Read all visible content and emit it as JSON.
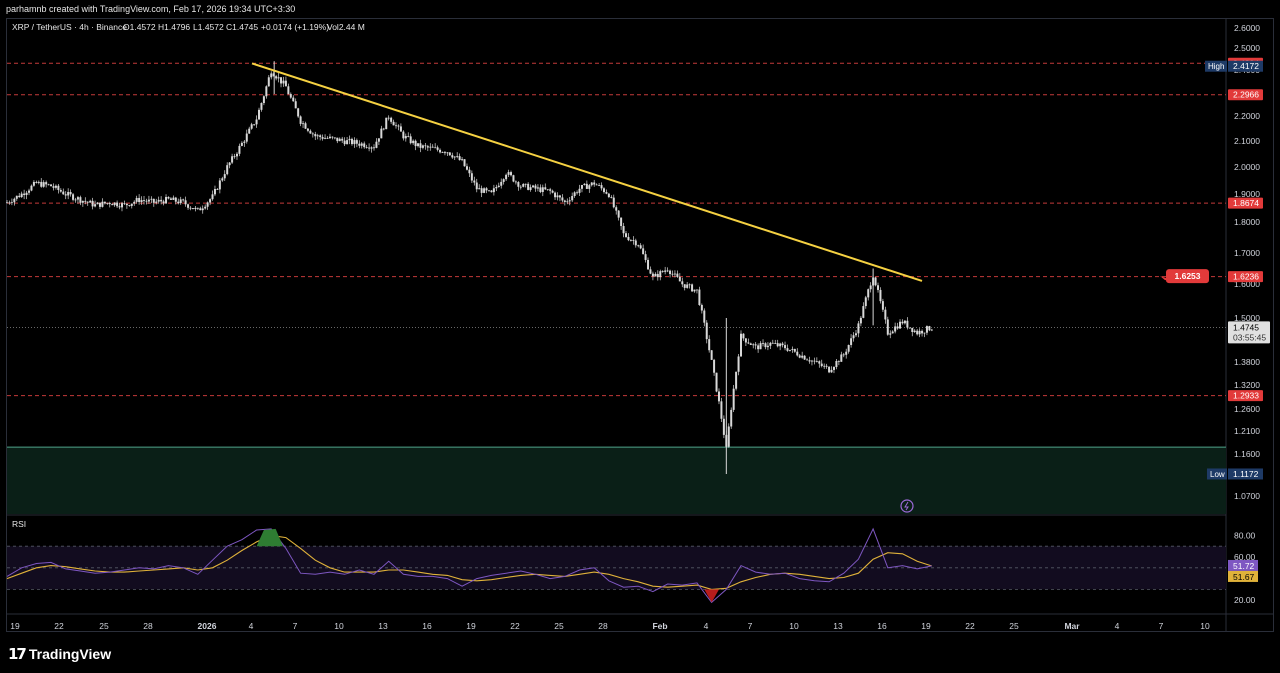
{
  "topbar": {
    "credit": "parhamnb created with TradingView.com, Feb 17, 2026 19:34 UTC+3:30"
  },
  "legend": {
    "symbol": "XRP / TetherUS · 4h · Binance",
    "open": "O1.4572",
    "high": "H1.4796",
    "low": "L1.4572",
    "close": "C1.4745",
    "change": "+0.0174 (+1.19%)",
    "volume": "Vol2.44 M"
  },
  "rsi_label": "RSI",
  "brand": {
    "logo": "17",
    "name": "TradingView"
  },
  "colors": {
    "bg": "#000000",
    "candle": "#d9d9d9",
    "trendline": "#f5d142",
    "level_line": "#c43a3a",
    "zone": "#0a1f17",
    "zone_border": "#4fa38a",
    "rsi_line": "#7e57c2",
    "rsi_ma": "#e0b23a",
    "tag_red": "#e23a3a",
    "tag_blue": "#1e3a66"
  },
  "chart_data": [
    {
      "type": "candlestick",
      "symbol": "XRP / TetherUS",
      "timeframe": "4h",
      "price_ticks": [
        "2.6000",
        "2.5000",
        "2.4000",
        "2.3000",
        "2.2000",
        "2.1000",
        "2.0000",
        "1.9000",
        "1.8000",
        "1.7000",
        "1.6000",
        "1.5000",
        "1.3800",
        "1.3200",
        "1.2600",
        "1.2100",
        "1.1600",
        "1.0700"
      ],
      "date_ticks": [
        "19",
        "22",
        "25",
        "28",
        "2026",
        "4",
        "7",
        "10",
        "13",
        "16",
        "19",
        "22",
        "25",
        "28",
        "Feb",
        "4",
        "7",
        "10",
        "13",
        "16",
        "19",
        "22",
        "25",
        "Mar",
        "4",
        "7",
        "10"
      ],
      "levels": [
        {
          "label": "2.4304",
          "price": 2.4304
        },
        {
          "label": "2.2966",
          "price": 2.2966
        },
        {
          "label": "1.8674",
          "price": 1.8674
        },
        {
          "label": "1.6236",
          "price": 1.6236
        },
        {
          "label": "1.2933",
          "price": 1.2933
        }
      ],
      "high_marker": {
        "label": "High",
        "value": "2.4172",
        "price": 2.4172
      },
      "low_marker": {
        "label": "Low",
        "value": "1.1172",
        "price": 1.1172
      },
      "last_price": {
        "value": "1.4745",
        "countdown": "03:55:45",
        "price": 1.4745
      },
      "callout": {
        "label": "1.6253",
        "price": 1.6253
      },
      "trendline": [
        {
          "date": "Jan 5",
          "price": 2.43
        },
        {
          "date": "Feb 18",
          "price": 1.62
        }
      ],
      "support_zone": {
        "top": 1.175,
        "bottom": 1.02
      },
      "close_path": [
        {
          "d": 0,
          "p": 1.87
        },
        {
          "d": 1,
          "p": 1.9
        },
        {
          "d": 2,
          "p": 1.94
        },
        {
          "d": 3,
          "p": 1.93
        },
        {
          "d": 4,
          "p": 1.9
        },
        {
          "d": 5,
          "p": 1.88
        },
        {
          "d": 6,
          "p": 1.86
        },
        {
          "d": 7,
          "p": 1.87
        },
        {
          "d": 8,
          "p": 1.86
        },
        {
          "d": 9,
          "p": 1.88
        },
        {
          "d": 10,
          "p": 1.87
        },
        {
          "d": 11,
          "p": 1.88
        },
        {
          "d": 12,
          "p": 1.87
        },
        {
          "d": 13,
          "p": 1.84
        },
        {
          "d": 14,
          "p": 1.89
        },
        {
          "d": 15,
          "p": 2.0
        },
        {
          "d": 16,
          "p": 2.09
        },
        {
          "d": 17,
          "p": 2.19
        },
        {
          "d": 18,
          "p": 2.4
        },
        {
          "d": 19,
          "p": 2.33
        },
        {
          "d": 20,
          "p": 2.18
        },
        {
          "d": 21,
          "p": 2.12
        },
        {
          "d": 22,
          "p": 2.11
        },
        {
          "d": 23,
          "p": 2.1
        },
        {
          "d": 24,
          "p": 2.09
        },
        {
          "d": 25,
          "p": 2.08
        },
        {
          "d": 26,
          "p": 2.2
        },
        {
          "d": 27,
          "p": 2.12
        },
        {
          "d": 28,
          "p": 2.08
        },
        {
          "d": 29,
          "p": 2.07
        },
        {
          "d": 30,
          "p": 2.06
        },
        {
          "d": 31,
          "p": 2.02
        },
        {
          "d": 32,
          "p": 1.92
        },
        {
          "d": 33,
          "p": 1.9
        },
        {
          "d": 34,
          "p": 1.98
        },
        {
          "d": 35,
          "p": 1.93
        },
        {
          "d": 36,
          "p": 1.92
        },
        {
          "d": 37,
          "p": 1.91
        },
        {
          "d": 38,
          "p": 1.87
        },
        {
          "d": 39,
          "p": 1.92
        },
        {
          "d": 40,
          "p": 1.94
        },
        {
          "d": 41,
          "p": 1.9
        },
        {
          "d": 42,
          "p": 1.76
        },
        {
          "d": 43,
          "p": 1.73
        },
        {
          "d": 44,
          "p": 1.62
        },
        {
          "d": 45,
          "p": 1.65
        },
        {
          "d": 46,
          "p": 1.6
        },
        {
          "d": 47,
          "p": 1.58
        },
        {
          "d": 48,
          "p": 1.38
        },
        {
          "d": 49,
          "p": 1.17
        },
        {
          "d": 50,
          "p": 1.45
        },
        {
          "d": 51,
          "p": 1.42
        },
        {
          "d": 52,
          "p": 1.43
        },
        {
          "d": 53,
          "p": 1.42
        },
        {
          "d": 54,
          "p": 1.4
        },
        {
          "d": 55,
          "p": 1.38
        },
        {
          "d": 56,
          "p": 1.36
        },
        {
          "d": 57,
          "p": 1.4
        },
        {
          "d": 58,
          "p": 1.48
        },
        {
          "d": 59,
          "p": 1.63
        },
        {
          "d": 60,
          "p": 1.46
        },
        {
          "d": 61,
          "p": 1.49
        },
        {
          "d": 62,
          "p": 1.46
        },
        {
          "d": 63,
          "p": 1.4745
        }
      ]
    },
    {
      "type": "line",
      "title": "RSI",
      "y_ticks": [
        "80.00",
        "60.00",
        "20.00"
      ],
      "current": {
        "rsi": "51.72",
        "ma": "51.67"
      },
      "bands": [
        70,
        50,
        30
      ],
      "rsi_values": [
        42,
        50,
        54,
        55,
        49,
        47,
        45,
        46,
        48,
        50,
        49,
        52,
        50,
        44,
        57,
        70,
        76,
        85,
        86,
        68,
        45,
        44,
        46,
        44,
        48,
        44,
        56,
        44,
        42,
        42,
        40,
        33,
        40,
        43,
        45,
        47,
        44,
        40,
        42,
        48,
        50,
        38,
        32,
        33,
        28,
        35,
        34,
        36,
        18,
        30,
        52,
        46,
        44,
        45,
        40,
        38,
        37,
        45,
        58,
        86,
        50,
        52,
        49,
        51.72
      ],
      "ma_values": [
        40,
        45,
        50,
        52,
        51,
        49,
        47,
        46,
        46,
        47,
        48,
        49,
        50,
        48,
        50,
        57,
        66,
        74,
        80,
        78,
        68,
        57,
        50,
        46,
        46,
        46,
        48,
        48,
        46,
        44,
        43,
        39,
        38,
        39,
        41,
        43,
        44,
        43,
        42,
        44,
        46,
        44,
        40,
        37,
        33,
        32,
        33,
        34,
        30,
        31,
        37,
        41,
        44,
        45,
        44,
        42,
        40,
        41,
        45,
        58,
        64,
        63,
        56,
        51.67
      ]
    }
  ]
}
